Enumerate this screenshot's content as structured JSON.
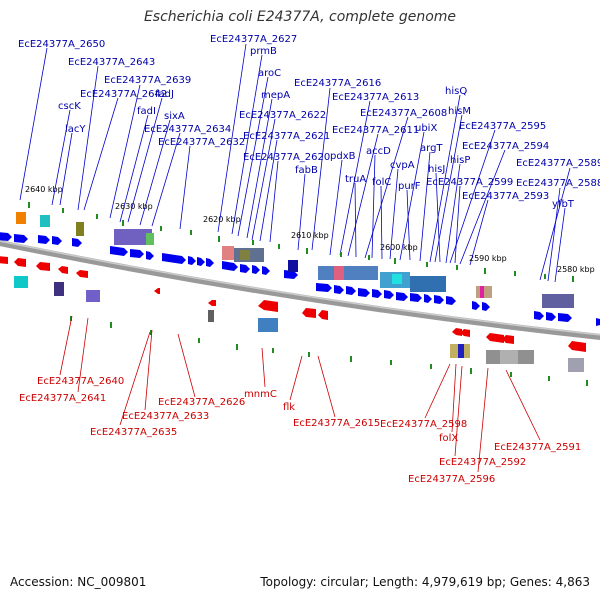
{
  "title": "Escherichia coli E24377A, complete genome",
  "footer": {
    "accession": "Accession: NC_009801",
    "summary": "Topology: circular; Length: 4,979,619 bp; Genes: 4,863"
  },
  "colors": {
    "forward_gene": "#0000ee",
    "reverse_gene": "#ee0000",
    "backbone": "#888888",
    "tick": "#228b22"
  },
  "ticks": [
    "2640 kbp",
    "2630 kbp",
    "2620 kbp",
    "2610 kbp",
    "2600 kbp",
    "2590 kbp",
    "2580 kbp"
  ],
  "forward_labels": [
    "EcE24377A_2650",
    "EcE24377A_2643",
    "cscK",
    "lacY",
    "EcE24377A_2639",
    "EcE24377A_2642",
    "fadJ",
    "fadI",
    "sixA",
    "EcE24377A_2634",
    "EcE24377A_2632",
    "EcE24377A_2627",
    "prmB",
    "aroC",
    "mepA",
    "EcE24377A_2622",
    "EcE24377A_2621",
    "EcE24377A_2620",
    "EcE24377A_2616",
    "fabB",
    "EcE24377A_2613",
    "pdxB",
    "EcE24377A_2611",
    "truA",
    "EcE24377A_2608",
    "accD",
    "folC",
    "cvpA",
    "ubiX",
    "purF",
    "argT",
    "hisQ",
    "hisM",
    "hisJ",
    "hisP",
    "EcE24377A_2595",
    "EcE24377A_2599",
    "EcE24377A_2594",
    "EcE24377A_2593",
    "EcE24377A_2589",
    "EcE24377A_2588",
    "yfbT"
  ],
  "reverse_labels": [
    "EcE24377A_2640",
    "EcE24377A_2641",
    "EcE24377A_2626",
    "EcE24377A_2633",
    "EcE24377A_2635",
    "mnmC",
    "flk",
    "EcE24377A_2615",
    "EcE24377A_2598",
    "folX",
    "EcE24377A_2592",
    "EcE24377A_2596",
    "EcE24377A_2591"
  ]
}
